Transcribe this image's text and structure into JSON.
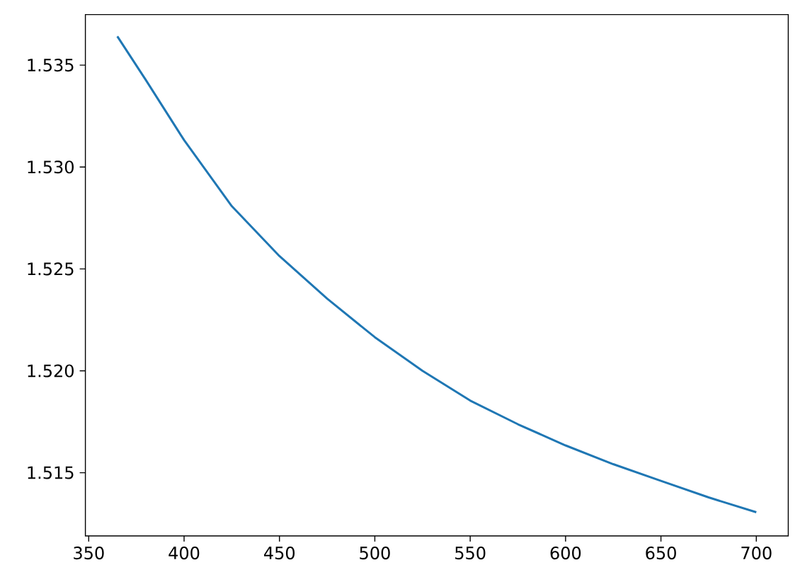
{
  "chart_data": {
    "type": "line",
    "x": [
      365,
      380,
      400,
      425,
      450,
      475,
      500,
      525,
      550,
      575,
      600,
      625,
      650,
      675,
      700
    ],
    "series": [
      {
        "color": "#1f77b4",
        "values": [
          1.53641,
          1.53426,
          1.53132,
          1.52808,
          1.52563,
          1.52354,
          1.52165,
          1.52,
          1.51854,
          1.51738,
          1.51634,
          1.51542,
          1.5146,
          1.51379,
          1.51306
        ]
      }
    ],
    "xlim": [
      348.25,
      716.75
    ],
    "ylim": [
      1.5119,
      1.53748
    ],
    "xticks": [
      350,
      400,
      450,
      500,
      550,
      600,
      650,
      700
    ],
    "yticks": [
      1.515,
      {
        "value": 1.52,
        "label": "1.520"
      },
      1.525,
      {
        "value": 1.53,
        "label": "1.530"
      },
      1.535
    ]
  }
}
